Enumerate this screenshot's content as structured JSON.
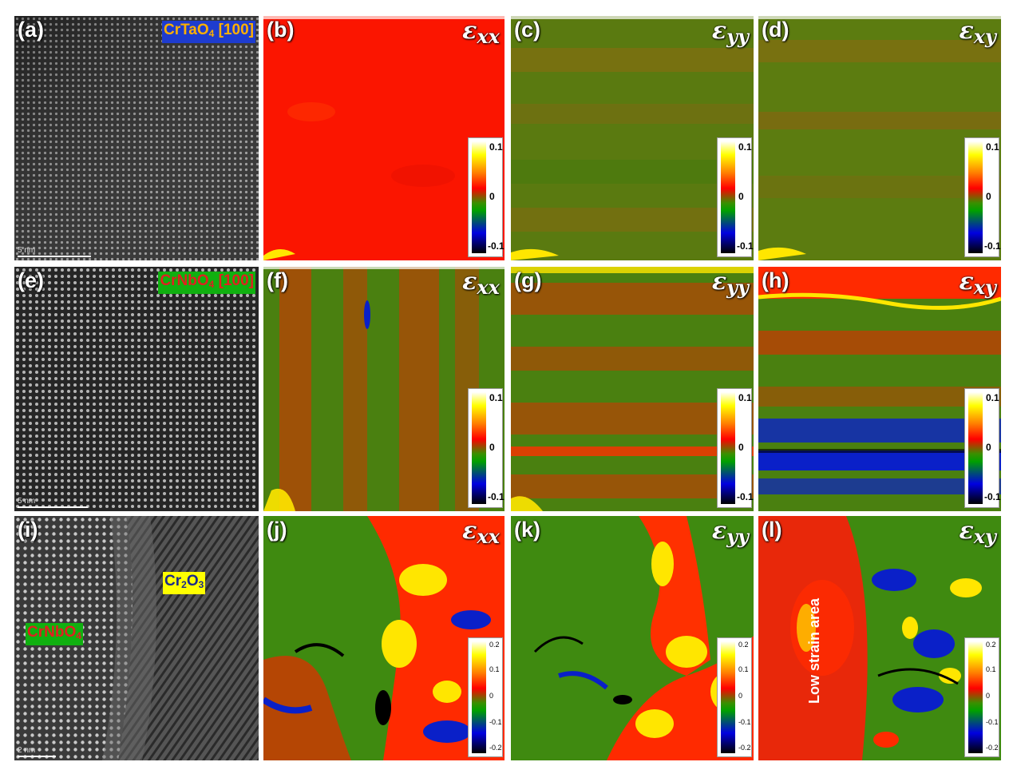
{
  "rows": [
    {
      "tem": {
        "label": "(a)",
        "material_main": "CrTaO",
        "material_sub": "4",
        "material_tail": " [100]",
        "material_bg": "#1e3ccf",
        "material_color": "#ffb000",
        "scale": "5 nm"
      },
      "maps": [
        {
          "label": "(b)",
          "sym": "ε",
          "sub": "xx",
          "cbar_ticks": [
            "0.1",
            "0",
            "-0.1"
          ]
        },
        {
          "label": "(c)",
          "sym": "ε",
          "sub": "yy",
          "cbar_ticks": [
            "0.1",
            "0",
            "-0.1"
          ]
        },
        {
          "label": "(d)",
          "sym": "ε",
          "sub": "xy",
          "cbar_ticks": [
            "0.1",
            "0",
            "-0.1"
          ]
        }
      ]
    },
    {
      "tem": {
        "label": "(e)",
        "material_main": "CrNbO",
        "material_sub": "4",
        "material_tail": " [100]",
        "material_bg": "#10b010",
        "material_color": "#e02020",
        "scale": "5 nm"
      },
      "maps": [
        {
          "label": "(f)",
          "sym": "ε",
          "sub": "xx",
          "cbar_ticks": [
            "0.1",
            "0",
            "-0.1"
          ]
        },
        {
          "label": "(g)",
          "sym": "ε",
          "sub": "yy",
          "cbar_ticks": [
            "0.1",
            "0",
            "-0.1"
          ]
        },
        {
          "label": "(h)",
          "sym": "ε",
          "sub": "xy",
          "cbar_ticks": [
            "0.1",
            "0",
            "-0.1"
          ]
        }
      ]
    },
    {
      "tem": {
        "label": "(i)",
        "scale": "2 nm",
        "phase_a_main": "Cr",
        "phase_a_sub": "2",
        "phase_a_tail": "O",
        "phase_a_sub2": "3",
        "phase_b_main": "CrNbO",
        "phase_b_sub": "4"
      },
      "maps": [
        {
          "label": "(j)",
          "sym": "ε",
          "sub": "xx",
          "cbar_ticks": [
            "0.2",
            "0.1",
            "0",
            "-0.1",
            "-0.2"
          ]
        },
        {
          "label": "(k)",
          "sym": "ε",
          "sub": "yy",
          "cbar_ticks": [
            "0.2",
            "0.1",
            "0",
            "-0.1",
            "-0.2"
          ]
        },
        {
          "label": "(l)",
          "sym": "ε",
          "sub": "xy",
          "cbar_ticks": [
            "0.2",
            "0.1",
            "0",
            "-0.1",
            "-0.2"
          ],
          "annotation": "Low strain area"
        }
      ]
    }
  ],
  "colors": {
    "strain_red": "#ff1a00",
    "strain_green": "#3f8a10",
    "strain_blue": "#0a20c8",
    "strain_yellow": "#ffe600"
  }
}
